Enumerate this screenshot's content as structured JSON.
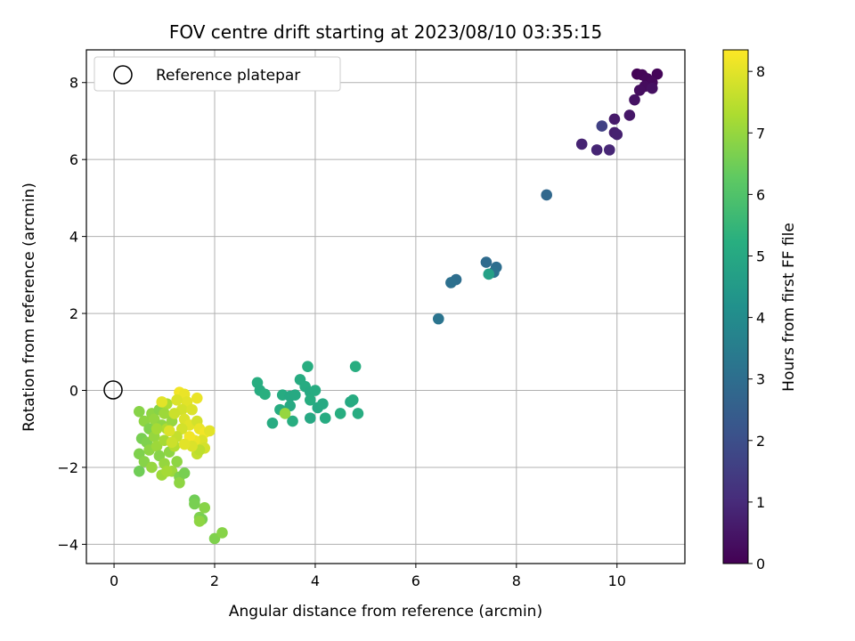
{
  "chart_data": {
    "type": "scatter",
    "title": "FOV centre drift starting at 2023/08/10 03:35:15",
    "xlabel": "Angular distance from reference (arcmin)",
    "ylabel": "Rotation from reference (arcmin)",
    "xlim": [
      -0.55,
      11.35
    ],
    "ylim": [
      -4.5,
      8.85
    ],
    "xticks": [
      0,
      2,
      4,
      6,
      8,
      10
    ],
    "yticks": [
      -4,
      -2,
      0,
      2,
      4,
      6,
      8
    ],
    "grid": true,
    "legend": {
      "placement": "top-left",
      "entries": [
        "Reference platepar"
      ]
    },
    "reference_point": {
      "x": 0,
      "y": 0
    },
    "colorbar": {
      "label": "Hours from first FF file",
      "colormap": "viridis",
      "range": [
        0,
        8.35
      ],
      "ticks": [
        0,
        1,
        2,
        3,
        4,
        5,
        6,
        7,
        8
      ]
    },
    "series": [
      {
        "points": [
          {
            "x": 10.4,
            "y": 8.22,
            "c": 0.05
          },
          {
            "x": 10.5,
            "y": 8.2,
            "c": 0.1
          },
          {
            "x": 10.6,
            "y": 8.1,
            "c": 0.15
          },
          {
            "x": 10.8,
            "y": 8.22,
            "c": 0.1
          },
          {
            "x": 10.7,
            "y": 8.0,
            "c": 0.2
          },
          {
            "x": 10.55,
            "y": 7.9,
            "c": 0.25
          },
          {
            "x": 10.45,
            "y": 7.8,
            "c": 0.3
          },
          {
            "x": 10.7,
            "y": 7.85,
            "c": 0.35
          },
          {
            "x": 10.35,
            "y": 7.55,
            "c": 0.4
          },
          {
            "x": 10.25,
            "y": 7.15,
            "c": 0.5
          },
          {
            "x": 9.95,
            "y": 7.05,
            "c": 0.6
          },
          {
            "x": 9.95,
            "y": 6.7,
            "c": 0.7
          },
          {
            "x": 10.0,
            "y": 6.65,
            "c": 0.75
          },
          {
            "x": 9.3,
            "y": 6.4,
            "c": 0.8
          },
          {
            "x": 9.6,
            "y": 6.25,
            "c": 0.85
          },
          {
            "x": 9.85,
            "y": 6.25,
            "c": 0.9
          },
          {
            "x": 9.7,
            "y": 6.87,
            "c": 1.6
          },
          {
            "x": 8.6,
            "y": 5.08,
            "c": 2.8
          },
          {
            "x": 7.4,
            "y": 3.33,
            "c": 2.9
          },
          {
            "x": 7.6,
            "y": 3.2,
            "c": 3.0
          },
          {
            "x": 7.55,
            "y": 3.07,
            "c": 3.1
          },
          {
            "x": 6.8,
            "y": 2.88,
            "c": 3.0
          },
          {
            "x": 6.7,
            "y": 2.8,
            "c": 3.05
          },
          {
            "x": 6.45,
            "y": 1.86,
            "c": 3.2
          },
          {
            "x": 7.45,
            "y": 3.02,
            "c": 4.7
          },
          {
            "x": 2.85,
            "y": 0.2,
            "c": 5.2
          },
          {
            "x": 2.9,
            "y": 0.0,
            "c": 5.15
          },
          {
            "x": 3.0,
            "y": -0.1,
            "c": 5.25
          },
          {
            "x": 3.35,
            "y": -0.12,
            "c": 5.1
          },
          {
            "x": 3.5,
            "y": -0.15,
            "c": 5.0
          },
          {
            "x": 3.6,
            "y": -0.12,
            "c": 5.05
          },
          {
            "x": 3.7,
            "y": 0.28,
            "c": 5.1
          },
          {
            "x": 3.85,
            "y": 0.62,
            "c": 5.2
          },
          {
            "x": 3.8,
            "y": 0.1,
            "c": 5.1
          },
          {
            "x": 3.9,
            "y": -0.05,
            "c": 5.05
          },
          {
            "x": 4.0,
            "y": 0.0,
            "c": 5.15
          },
          {
            "x": 3.9,
            "y": -0.25,
            "c": 5.2
          },
          {
            "x": 4.05,
            "y": -0.45,
            "c": 5.0
          },
          {
            "x": 4.15,
            "y": -0.35,
            "c": 5.05
          },
          {
            "x": 4.2,
            "y": -0.72,
            "c": 5.1
          },
          {
            "x": 3.9,
            "y": -0.72,
            "c": 5.0
          },
          {
            "x": 3.55,
            "y": -0.8,
            "c": 5.2
          },
          {
            "x": 3.15,
            "y": -0.85,
            "c": 5.1
          },
          {
            "x": 3.3,
            "y": -0.5,
            "c": 5.15
          },
          {
            "x": 3.5,
            "y": -0.4,
            "c": 5.05
          },
          {
            "x": 4.5,
            "y": -0.6,
            "c": 5.2
          },
          {
            "x": 4.7,
            "y": -0.3,
            "c": 5.0
          },
          {
            "x": 4.75,
            "y": -0.25,
            "c": 5.1
          },
          {
            "x": 4.8,
            "y": 0.62,
            "c": 5.2
          },
          {
            "x": 4.85,
            "y": -0.6,
            "c": 5.15
          },
          {
            "x": 3.4,
            "y": -0.6,
            "c": 7.0
          },
          {
            "x": 0.5,
            "y": -0.55,
            "c": 6.8
          },
          {
            "x": 0.6,
            "y": -0.8,
            "c": 6.9
          },
          {
            "x": 0.7,
            "y": -1.0,
            "c": 6.7
          },
          {
            "x": 0.75,
            "y": -0.6,
            "c": 6.9
          },
          {
            "x": 0.8,
            "y": -0.75,
            "c": 7.0
          },
          {
            "x": 0.9,
            "y": -0.5,
            "c": 6.8
          },
          {
            "x": 0.95,
            "y": -0.9,
            "c": 6.9
          },
          {
            "x": 1.05,
            "y": -0.35,
            "c": 7.3
          },
          {
            "x": 0.55,
            "y": -1.25,
            "c": 6.6
          },
          {
            "x": 0.65,
            "y": -1.35,
            "c": 6.7
          },
          {
            "x": 0.7,
            "y": -1.55,
            "c": 6.9
          },
          {
            "x": 0.8,
            "y": -1.2,
            "c": 7.0
          },
          {
            "x": 0.85,
            "y": -1.45,
            "c": 7.1
          },
          {
            "x": 0.9,
            "y": -1.7,
            "c": 6.8
          },
          {
            "x": 1.0,
            "y": -1.3,
            "c": 7.2
          },
          {
            "x": 1.0,
            "y": -1.9,
            "c": 7.0
          },
          {
            "x": 1.1,
            "y": -1.6,
            "c": 6.9
          },
          {
            "x": 1.15,
            "y": -2.1,
            "c": 7.1
          },
          {
            "x": 1.2,
            "y": -1.45,
            "c": 7.4
          },
          {
            "x": 1.25,
            "y": -1.85,
            "c": 6.9
          },
          {
            "x": 1.3,
            "y": -2.25,
            "c": 6.7
          },
          {
            "x": 0.5,
            "y": -1.65,
            "c": 6.7
          },
          {
            "x": 0.5,
            "y": -2.1,
            "c": 6.5
          },
          {
            "x": 0.6,
            "y": -1.85,
            "c": 6.8
          },
          {
            "x": 0.75,
            "y": -2.0,
            "c": 7.0
          },
          {
            "x": 0.95,
            "y": -2.2,
            "c": 7.1
          },
          {
            "x": 1.05,
            "y": -2.1,
            "c": 7.2
          },
          {
            "x": 1.3,
            "y": -2.4,
            "c": 6.9
          },
          {
            "x": 1.0,
            "y": -0.6,
            "c": 7.1
          },
          {
            "x": 1.05,
            "y": -1.0,
            "c": 7.3
          },
          {
            "x": 1.15,
            "y": -0.8,
            "c": 7.0
          },
          {
            "x": 0.85,
            "y": -1.0,
            "c": 7.2
          },
          {
            "x": 1.4,
            "y": -2.15,
            "c": 6.6
          },
          {
            "x": 1.6,
            "y": -2.85,
            "c": 6.5
          },
          {
            "x": 1.6,
            "y": -2.95,
            "c": 6.6
          },
          {
            "x": 1.7,
            "y": -3.3,
            "c": 6.7
          },
          {
            "x": 1.75,
            "y": -3.35,
            "c": 6.6
          },
          {
            "x": 1.8,
            "y": -3.05,
            "c": 6.8
          },
          {
            "x": 1.7,
            "y": -3.4,
            "c": 6.9
          },
          {
            "x": 2.0,
            "y": -3.85,
            "c": 6.7
          },
          {
            "x": 2.15,
            "y": -3.7,
            "c": 6.8
          },
          {
            "x": 1.3,
            "y": -0.05,
            "c": 8.2
          },
          {
            "x": 1.4,
            "y": -0.1,
            "c": 8.1
          },
          {
            "x": 1.45,
            "y": -0.3,
            "c": 8.0
          },
          {
            "x": 1.25,
            "y": -0.25,
            "c": 7.9
          },
          {
            "x": 1.35,
            "y": -0.5,
            "c": 7.8
          },
          {
            "x": 1.55,
            "y": -0.5,
            "c": 7.9
          },
          {
            "x": 1.65,
            "y": -0.2,
            "c": 8.1
          },
          {
            "x": 0.95,
            "y": -0.3,
            "c": 8.0
          },
          {
            "x": 1.2,
            "y": -0.6,
            "c": 7.7
          },
          {
            "x": 1.4,
            "y": -0.75,
            "c": 7.9
          },
          {
            "x": 1.5,
            "y": -0.9,
            "c": 8.0
          },
          {
            "x": 1.65,
            "y": -0.8,
            "c": 7.8
          },
          {
            "x": 1.7,
            "y": -1.0,
            "c": 8.1
          },
          {
            "x": 1.8,
            "y": -1.1,
            "c": 8.2
          },
          {
            "x": 1.9,
            "y": -1.05,
            "c": 8.0
          },
          {
            "x": 1.75,
            "y": -1.3,
            "c": 7.9
          },
          {
            "x": 1.8,
            "y": -1.5,
            "c": 7.8
          },
          {
            "x": 1.6,
            "y": -1.3,
            "c": 8.1
          },
          {
            "x": 1.5,
            "y": -1.2,
            "c": 8.2
          },
          {
            "x": 1.35,
            "y": -1.0,
            "c": 7.8
          },
          {
            "x": 1.25,
            "y": -1.2,
            "c": 7.6
          },
          {
            "x": 1.1,
            "y": -1.05,
            "c": 7.9
          },
          {
            "x": 1.15,
            "y": -1.35,
            "c": 7.7
          },
          {
            "x": 1.65,
            "y": -1.65,
            "c": 7.6
          },
          {
            "x": 1.7,
            "y": -1.55,
            "c": 7.5
          },
          {
            "x": 1.55,
            "y": -1.45,
            "c": 7.9
          },
          {
            "x": 1.4,
            "y": -1.4,
            "c": 8.0
          }
        ]
      }
    ]
  }
}
